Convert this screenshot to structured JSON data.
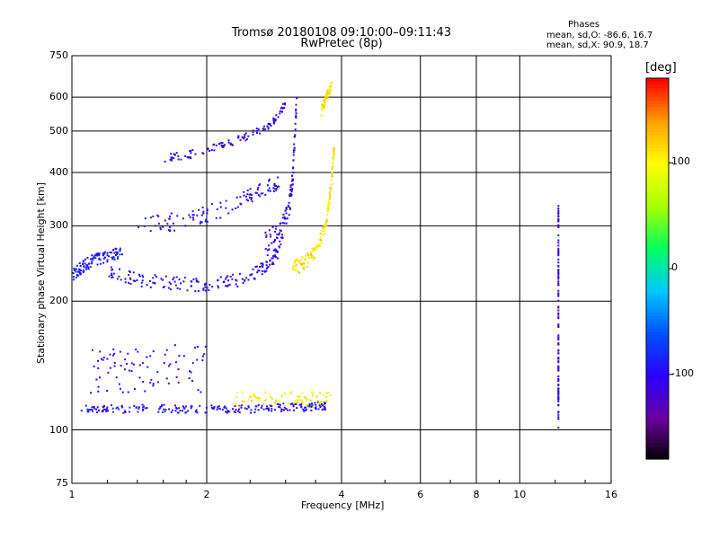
{
  "chart_data": {
    "type": "scatter",
    "title": "Tromsø 20180108 09:10:00–09:11:43",
    "subtitle": "RwPretec (8p)",
    "xlabel": "Frequency [MHz]",
    "ylabel": "Stationary phase Virtual Height [km]",
    "x_scale": "log",
    "y_scale": "log",
    "xlim": [
      1,
      16
    ],
    "ylim": [
      75,
      750
    ],
    "x_ticks": [
      1,
      2,
      4,
      6,
      8,
      10,
      16
    ],
    "x_tick_labels": [
      "1",
      "2",
      "4",
      "6",
      "8",
      "10",
      "16"
    ],
    "y_ticks": [
      75,
      100,
      200,
      300,
      400,
      500,
      600,
      750
    ],
    "y_tick_labels": [
      "75",
      "100",
      "200",
      "300",
      "400",
      "500",
      "600",
      "750"
    ],
    "grid": true,
    "stats": {
      "heading": "Phases",
      "line_o": "mean, sd,O: -86.6, 16.7",
      "line_x": "mean, sd,X:  90.9, 18.7"
    },
    "colorbar": {
      "label": "[deg]",
      "range": [
        -180,
        180
      ],
      "ticks": [
        100,
        0,
        -100
      ],
      "tick_labels": [
        "100",
        "0",
        "-100"
      ],
      "colormap": [
        "#000000",
        "#6a00a0",
        "#2a00ff",
        "#0050ff",
        "#00c8ff",
        "#00ff60",
        "#a8ff00",
        "#ffff00",
        "#ffa000",
        "#ff0000"
      ]
    },
    "traces": [
      {
        "f": [
          1.05,
          1.2,
          1.5,
          1.8,
          2.2,
          2.6,
          3.0,
          3.4,
          3.7
        ],
        "h": [
          112,
          112,
          112,
          112,
          112,
          112,
          113,
          113,
          114
        ],
        "phase": -95,
        "spread": 2.5
      },
      {
        "f": [
          1.1,
          1.3,
          1.6,
          2.0
        ],
        "h": [
          140,
          140,
          140,
          140
        ],
        "phase": -110,
        "spread": 18
      },
      {
        "f": [
          2.3,
          2.8,
          3.3,
          3.8
        ],
        "h": [
          118,
          118,
          118,
          118
        ],
        "phase": 100,
        "spread": 5
      },
      {
        "f": [
          1.0,
          1.05,
          1.12,
          1.2,
          1.3
        ],
        "h": [
          230,
          240,
          250,
          255,
          260
        ],
        "phase": -90,
        "spread": 8
      },
      {
        "f": [
          1.2,
          1.4,
          1.7,
          2.0,
          2.4,
          2.7,
          2.9
        ],
        "h": [
          235,
          225,
          220,
          218,
          225,
          240,
          260
        ],
        "phase": -100,
        "spread": 8
      },
      {
        "f": [
          2.7,
          2.9,
          3.05,
          3.12,
          3.18
        ],
        "h": [
          270,
          285,
          320,
          400,
          600
        ],
        "phase": -110,
        "spread": 20
      },
      {
        "f": [
          3.1,
          3.3,
          3.5,
          3.7,
          3.8,
          3.85
        ],
        "h": [
          240,
          245,
          260,
          300,
          380,
          450
        ],
        "phase": 110,
        "spread": 10
      },
      {
        "f": [
          1.4,
          1.8,
          2.2,
          2.6,
          2.9
        ],
        "h": [
          300,
          310,
          330,
          360,
          380
        ],
        "phase": -100,
        "spread": 15
      },
      {
        "f": [
          1.6,
          2.0,
          2.4,
          2.8,
          3.0
        ],
        "h": [
          430,
          450,
          480,
          520,
          580
        ],
        "phase": -110,
        "spread": 10
      },
      {
        "f": [
          3.6,
          3.7,
          3.8
        ],
        "h": [
          550,
          600,
          640
        ],
        "phase": 110,
        "spread": 15
      },
      {
        "f": [
          12.2,
          12.2,
          12.2,
          12.2,
          12.2
        ],
        "h": [
          110,
          130,
          170,
          250,
          330
        ],
        "phase": -110,
        "spread": 12
      }
    ]
  }
}
